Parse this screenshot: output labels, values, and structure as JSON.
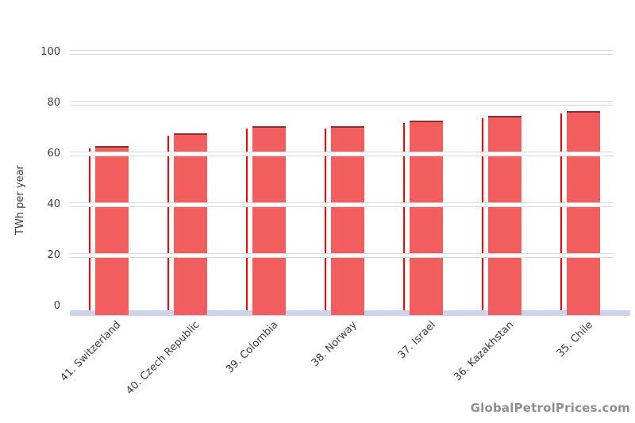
{
  "chart_data": {
    "type": "bar",
    "title": "",
    "xlabel": "",
    "ylabel": "TWh per year",
    "categories": [
      "41. Switzerland",
      "40. Czech Republic",
      "39. Colombia",
      "38. Norway",
      "37. Israel",
      "36. Kazakhstan",
      "35. Chile"
    ],
    "values": [
      63,
      68,
      71,
      71,
      73,
      75,
      77
    ],
    "yticks": [
      0,
      20,
      40,
      60,
      80,
      100
    ],
    "ylim": [
      0,
      105
    ],
    "grid": "horizontal-white-bands",
    "legend": "none",
    "colors": {
      "bar_fill": "#f25d5d",
      "bar_top_edge": "#8b2e2e",
      "marker_line": "#ff0000",
      "baseline_band": "#ccd3ed",
      "gridline": "#ffffff",
      "gridline_edge": "#dadada",
      "tick_text": "#3c3c3c",
      "watermark_text": "#8f8f8f"
    }
  },
  "watermark": "GlobalPetrolPrices.com"
}
